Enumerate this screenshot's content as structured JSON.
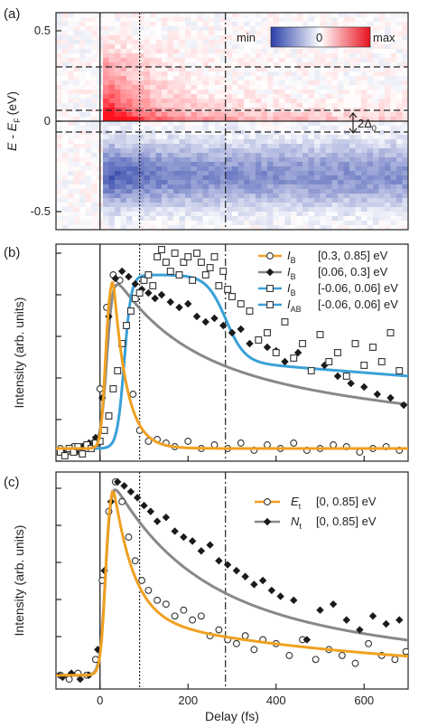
{
  "chart_data": [
    {
      "panel": "(a)",
      "type": "heatmap",
      "ylabel_main": "E - E",
      "ylabel_sub": "F",
      "ylabel_unit": "(eV)",
      "ylim": [
        -0.6,
        0.6
      ],
      "xlim": [
        -100,
        700
      ],
      "yticks": [
        0.5,
        0,
        -0.5
      ],
      "ytick_labels": [
        "0.5",
        "0",
        "-0.5"
      ],
      "colorbar": {
        "min_label": "min",
        "mid_label": "0",
        "max_label": "max",
        "low_color": "#2a3fa8",
        "mid_color": "#ffffff",
        "high_color": "#e8121f"
      },
      "hlines_dashed": [
        0.3,
        0.06,
        -0.06
      ],
      "hline_solid": 0,
      "gap_label": "2Δ",
      "gap_sub": "0"
    },
    {
      "panel": "(b)",
      "type": "line",
      "ylabel": "Intensity (arb. units)",
      "xlim": [
        -100,
        700
      ],
      "ylim": [
        -0.05,
        1.15
      ],
      "legend_position": "top-right",
      "series": [
        {
          "name_main": "I",
          "name_sub": "B",
          "range": "[0.3, 0.85] eV",
          "color": "#f0a020",
          "marker": "circle",
          "x": [
            -90,
            -75,
            -60,
            -45,
            -30,
            -15,
            0,
            15,
            30,
            45,
            60,
            75,
            90,
            110,
            130,
            150,
            170,
            200,
            230,
            260,
            290,
            320,
            350,
            380,
            410,
            440,
            470,
            500,
            530,
            560,
            590,
            620,
            650,
            680
          ],
          "y": [
            0.02,
            0.0,
            0.03,
            0.0,
            0.02,
            0.05,
            0.35,
            0.8,
            0.98,
            0.95,
            0.7,
            0.32,
            0.12,
            0.06,
            0.07,
            0.05,
            0.03,
            0.06,
            0.02,
            0.04,
            0.02,
            0.05,
            0.01,
            0.04,
            0.02,
            0.05,
            0.01,
            0.02,
            0.04,
            0.03,
            0.0,
            0.02,
            0.03,
            0.01
          ]
        },
        {
          "name_main": "I",
          "name_sub": "B",
          "range": "[0.06, 0.3] eV",
          "color": "#333333",
          "marker": "diamond",
          "x": [
            -85,
            -70,
            -55,
            -40,
            -25,
            -10,
            5,
            20,
            35,
            50,
            65,
            80,
            95,
            110,
            125,
            140,
            160,
            180,
            200,
            220,
            240,
            260,
            280,
            300,
            320,
            340,
            360,
            380,
            400,
            420,
            450,
            480,
            510,
            540,
            570,
            600,
            630,
            660,
            690
          ],
          "y": [
            0.0,
            0.02,
            0.0,
            0.03,
            0.05,
            0.08,
            0.3,
            0.75,
            0.96,
            1.0,
            0.97,
            0.93,
            0.9,
            0.88,
            0.85,
            0.87,
            0.83,
            0.8,
            0.82,
            0.75,
            0.72,
            0.74,
            0.7,
            0.66,
            0.68,
            0.6,
            0.62,
            0.58,
            0.56,
            0.5,
            0.55,
            0.45,
            0.48,
            0.42,
            0.38,
            0.36,
            0.32,
            0.3,
            0.26
          ]
        },
        {
          "name_main": "I",
          "name_sub": "B",
          "range": "[-0.06, 0.06] eV",
          "color": "#333333",
          "marker": "square",
          "x": [
            -90,
            -80,
            -70,
            -60,
            -50,
            -40,
            -30,
            -20,
            -10,
            0,
            10,
            20,
            30,
            40,
            50,
            60,
            70,
            80,
            90,
            100,
            110,
            120,
            130,
            140,
            150,
            160,
            170,
            180,
            190,
            200,
            210,
            220,
            230,
            240,
            250,
            260,
            270,
            280,
            290,
            300,
            320,
            340,
            360,
            380,
            400,
            420,
            440,
            460,
            480,
            500,
            520,
            540,
            560,
            580,
            600,
            620,
            640,
            660,
            680
          ],
          "y": [
            0.0,
            -0.02,
            0.02,
            0.0,
            0.03,
            -0.01,
            0.04,
            0.02,
            0.05,
            0.06,
            0.12,
            0.2,
            0.35,
            0.45,
            0.6,
            0.7,
            0.78,
            0.85,
            0.88,
            0.95,
            0.98,
            0.92,
            1.08,
            1.12,
            1.05,
            1.0,
            1.1,
            0.98,
            1.05,
            1.08,
            0.95,
            1.1,
            1.05,
            0.98,
            1.02,
            1.08,
            0.92,
            1.0,
            0.9,
            0.86,
            0.82,
            0.78,
            0.62,
            0.66,
            0.55,
            0.72,
            0.52,
            0.6,
            0.45,
            0.65,
            0.5,
            0.55,
            0.42,
            0.6,
            0.48,
            0.58,
            0.5,
            0.66,
            0.45
          ]
        },
        {
          "name_main": "I",
          "name_sub": "AB",
          "range": "[-0.06, 0.06] eV",
          "color": "#3aa0d8",
          "marker": "line"
        }
      ]
    },
    {
      "panel": "(c)",
      "type": "line",
      "ylabel": "Intensity (arb. units)",
      "xlabel": "Delay (fs)",
      "xlim": [
        -100,
        700
      ],
      "ylim": [
        -0.05,
        1.05
      ],
      "xticks": [
        0,
        200,
        400,
        600
      ],
      "xtick_labels": [
        "0",
        "200",
        "400",
        "600"
      ],
      "legend_position": "top-right",
      "series": [
        {
          "name_main": "E",
          "name_sub": "t",
          "range": "[0, 0.85] eV",
          "color": "#f0a020",
          "marker": "circle",
          "x": [
            -90,
            -70,
            -50,
            -30,
            -10,
            5,
            20,
            35,
            50,
            65,
            80,
            95,
            110,
            130,
            150,
            170,
            190,
            210,
            230,
            250,
            270,
            290,
            310,
            330,
            350,
            370,
            400,
            430,
            460,
            490,
            520,
            550,
            580,
            610,
            640,
            670,
            695
          ],
          "y": [
            0.02,
            0.0,
            0.03,
            0.02,
            0.1,
            0.5,
            0.85,
            1.0,
            0.9,
            0.72,
            0.6,
            0.5,
            0.45,
            0.4,
            0.38,
            0.32,
            0.35,
            0.3,
            0.32,
            0.22,
            0.25,
            0.2,
            0.18,
            0.22,
            0.15,
            0.2,
            0.18,
            0.12,
            0.2,
            0.1,
            0.15,
            0.12,
            0.08,
            0.18,
            0.12,
            0.1,
            0.14
          ]
        },
        {
          "name_main": "N",
          "name_sub": "t",
          "range": "[0, 0.85] eV",
          "color": "#333333",
          "marker": "diamond",
          "x": [
            -85,
            -65,
            -45,
            -25,
            -5,
            10,
            25,
            40,
            55,
            70,
            85,
            100,
            115,
            130,
            150,
            170,
            190,
            210,
            230,
            250,
            270,
            290,
            310,
            330,
            350,
            370,
            390,
            410,
            440,
            470,
            500,
            530,
            560,
            590,
            620,
            650,
            680
          ],
          "y": [
            0.01,
            0.03,
            0.0,
            0.02,
            0.15,
            0.55,
            0.9,
            1.0,
            0.98,
            0.95,
            0.92,
            0.88,
            0.85,
            0.8,
            0.82,
            0.75,
            0.72,
            0.7,
            0.65,
            0.68,
            0.6,
            0.58,
            0.55,
            0.52,
            0.48,
            0.5,
            0.45,
            0.42,
            0.4,
            0.2,
            0.35,
            0.38,
            0.3,
            0.25,
            0.32,
            0.28,
            0.3
          ]
        }
      ]
    }
  ]
}
